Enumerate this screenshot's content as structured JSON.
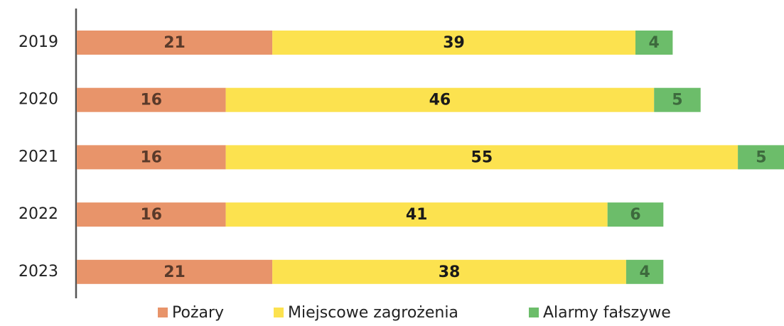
{
  "chart_data": {
    "type": "stacked-bar-horizontal",
    "categories": [
      "2019",
      "2020",
      "2021",
      "2022",
      "2023"
    ],
    "series": [
      {
        "name": "Pożary",
        "color": "#e8946a",
        "values": [
          21,
          16,
          16,
          16,
          21
        ]
      },
      {
        "name": "Miejscowe zagrożenia",
        "color": "#fce24f",
        "values": [
          39,
          46,
          55,
          41,
          38
        ]
      },
      {
        "name": "Alarmy fałszywe",
        "color": "#6cbd6a",
        "values": [
          4,
          5,
          5,
          6,
          4
        ]
      }
    ],
    "legend": "bottom"
  }
}
